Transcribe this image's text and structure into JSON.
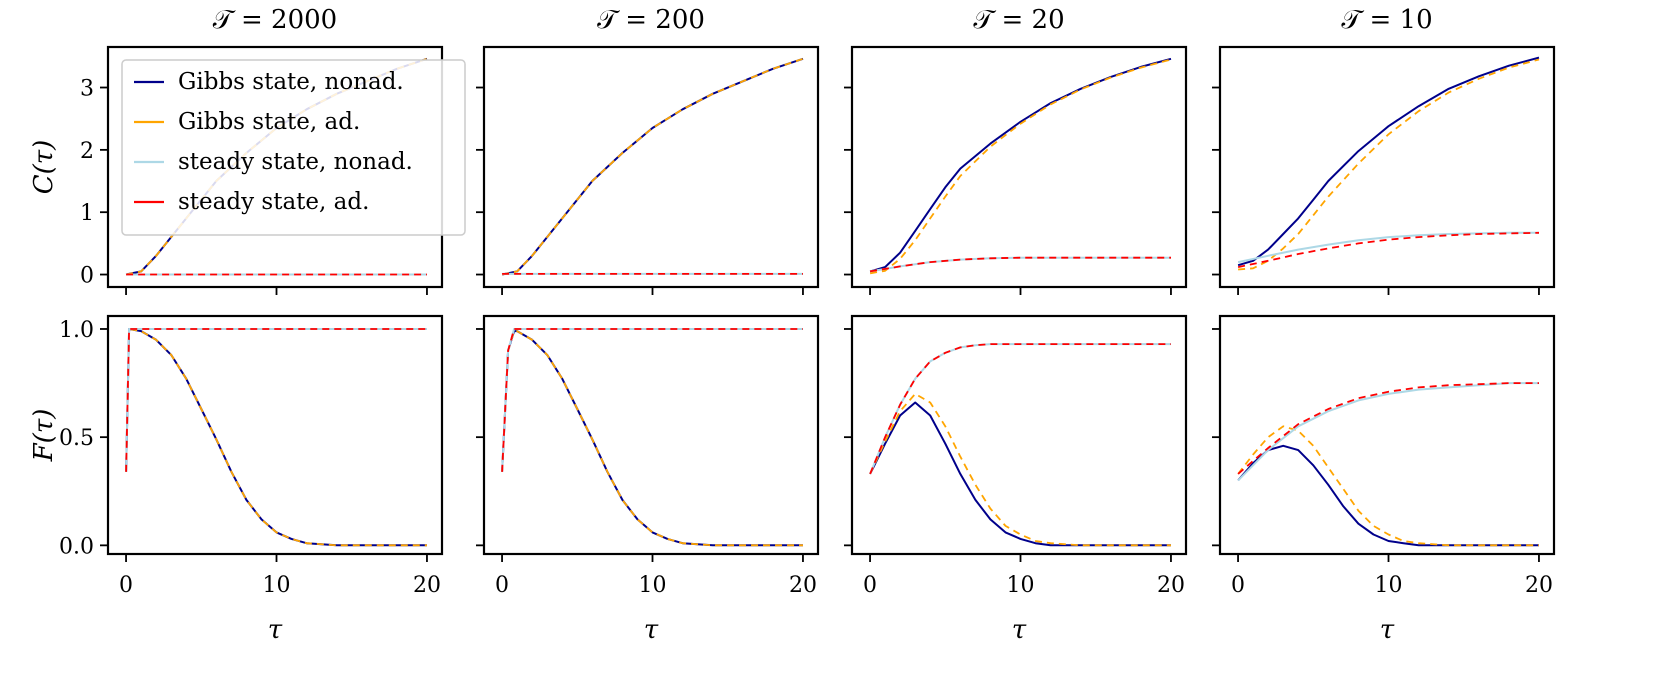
{
  "chart_data": {
    "type": "line",
    "layout": "2 rows x 4 columns",
    "row_ylabels": [
      "C(τ)",
      "F(τ)"
    ],
    "xlabel": "τ",
    "xlim": [
      -1.2,
      21
    ],
    "xticks": [
      0,
      10,
      20
    ],
    "rows": [
      {
        "ylabel": "C(τ)",
        "ylim": [
          -0.2,
          3.65
        ],
        "yticks": [
          0,
          1,
          2,
          3
        ],
        "ytick_labels": [
          "0",
          "1",
          "2",
          "3"
        ]
      },
      {
        "ylabel": "F(τ)",
        "ylim": [
          -0.04,
          1.06
        ],
        "yticks": [
          0.0,
          0.5,
          1.0
        ],
        "ytick_labels": [
          "0.0",
          "0.5",
          "1.0"
        ]
      }
    ],
    "legend": {
      "placement": "upper-left of first panel",
      "entries": [
        {
          "label": "Gibbs state, nonad.",
          "color": "#00008b"
        },
        {
          "label": "Gibbs state, ad.",
          "color": "#ffa500"
        },
        {
          "label": "steady state, nonad.",
          "color": "#add8e6"
        },
        {
          "label": "steady state, ad.",
          "color": "#ff0000"
        }
      ]
    },
    "columns": [
      {
        "title": "𝒯 = 2000",
        "C": {
          "gibbs_nonad": {
            "x": [
              0,
              1,
              2,
              4,
              6,
              8,
              10,
              12,
              14,
              16,
              18,
              20
            ],
            "y": [
              0,
              0.05,
              0.3,
              0.9,
              1.5,
              1.95,
              2.35,
              2.65,
              2.9,
              3.1,
              3.3,
              3.46
            ]
          },
          "gibbs_ad": {
            "x": [
              0,
              1,
              2,
              4,
              6,
              8,
              10,
              12,
              14,
              16,
              18,
              20
            ],
            "y": [
              0,
              0.05,
              0.3,
              0.9,
              1.5,
              1.95,
              2.35,
              2.65,
              2.9,
              3.1,
              3.3,
              3.46
            ]
          },
          "steady_nonad": {
            "x": [
              0,
              20
            ],
            "y": [
              0.0,
              0.0
            ]
          },
          "steady_ad": {
            "x": [
              0,
              20
            ],
            "y": [
              0.0,
              0.0
            ]
          }
        },
        "F": {
          "gibbs_nonad": {
            "x": [
              0,
              0.2,
              1,
              2,
              3,
              4,
              5,
              6,
              7,
              8,
              9,
              10,
              11,
              12,
              14,
              16,
              20
            ],
            "y": [
              0.34,
              1.0,
              0.99,
              0.95,
              0.88,
              0.77,
              0.63,
              0.49,
              0.34,
              0.21,
              0.12,
              0.06,
              0.03,
              0.01,
              0.0,
              0.0,
              0.0
            ]
          },
          "gibbs_ad": {
            "x": [
              0,
              0.2,
              1,
              2,
              3,
              4,
              5,
              6,
              7,
              8,
              9,
              10,
              11,
              12,
              14,
              16,
              20
            ],
            "y": [
              0.34,
              1.0,
              0.99,
              0.95,
              0.88,
              0.77,
              0.63,
              0.49,
              0.34,
              0.21,
              0.12,
              0.06,
              0.03,
              0.01,
              0.0,
              0.0,
              0.0
            ]
          },
          "steady_nonad": {
            "x": [
              0,
              0.2,
              20
            ],
            "y": [
              0.34,
              1.0,
              1.0
            ]
          },
          "steady_ad": {
            "x": [
              0,
              0.2,
              20
            ],
            "y": [
              0.34,
              1.0,
              1.0
            ]
          }
        }
      },
      {
        "title": "𝒯 = 200",
        "C": {
          "gibbs_nonad": {
            "x": [
              0,
              1,
              2,
              4,
              6,
              8,
              10,
              12,
              14,
              16,
              18,
              20
            ],
            "y": [
              0,
              0.05,
              0.3,
              0.9,
              1.5,
              1.95,
              2.35,
              2.65,
              2.9,
              3.1,
              3.3,
              3.46
            ]
          },
          "gibbs_ad": {
            "x": [
              0,
              1,
              2,
              4,
              6,
              8,
              10,
              12,
              14,
              16,
              18,
              20
            ],
            "y": [
              0,
              0.05,
              0.3,
              0.9,
              1.5,
              1.95,
              2.35,
              2.65,
              2.9,
              3.1,
              3.3,
              3.46
            ]
          },
          "steady_nonad": {
            "x": [
              0,
              20
            ],
            "y": [
              0.01,
              0.01
            ]
          },
          "steady_ad": {
            "x": [
              0,
              20
            ],
            "y": [
              0.01,
              0.01
            ]
          }
        },
        "F": {
          "gibbs_nonad": {
            "x": [
              0,
              0.4,
              0.8,
              1,
              2,
              3,
              4,
              5,
              6,
              7,
              8,
              9,
              10,
              11,
              12,
              14,
              16,
              20
            ],
            "y": [
              0.34,
              0.9,
              0.99,
              0.99,
              0.95,
              0.88,
              0.77,
              0.63,
              0.49,
              0.34,
              0.21,
              0.12,
              0.06,
              0.03,
              0.01,
              0.0,
              0.0,
              0.0
            ]
          },
          "gibbs_ad": {
            "x": [
              0,
              0.4,
              0.8,
              1,
              2,
              3,
              4,
              5,
              6,
              7,
              8,
              9,
              10,
              11,
              12,
              14,
              16,
              20
            ],
            "y": [
              0.34,
              0.9,
              0.99,
              0.99,
              0.95,
              0.88,
              0.77,
              0.63,
              0.49,
              0.34,
              0.21,
              0.12,
              0.06,
              0.03,
              0.01,
              0.0,
              0.0,
              0.0
            ]
          },
          "steady_nonad": {
            "x": [
              0,
              0.4,
              0.8,
              20
            ],
            "y": [
              0.34,
              0.9,
              1.0,
              1.0
            ]
          },
          "steady_ad": {
            "x": [
              0,
              0.4,
              0.8,
              20
            ],
            "y": [
              0.34,
              0.9,
              1.0,
              1.0
            ]
          }
        }
      },
      {
        "title": "𝒯 = 20",
        "C": {
          "gibbs_nonad": {
            "x": [
              0,
              1,
              2,
              3,
              4,
              5,
              6,
              8,
              10,
              12,
              14,
              16,
              18,
              20
            ],
            "y": [
              0.05,
              0.12,
              0.35,
              0.7,
              1.05,
              1.4,
              1.7,
              2.1,
              2.45,
              2.75,
              2.98,
              3.17,
              3.33,
              3.46
            ]
          },
          "gibbs_ad": {
            "x": [
              0,
              1,
              2,
              3,
              4,
              5,
              6,
              8,
              10,
              12,
              14,
              16,
              18,
              20
            ],
            "y": [
              0.02,
              0.06,
              0.25,
              0.55,
              0.9,
              1.25,
              1.58,
              2.05,
              2.42,
              2.73,
              2.97,
              3.16,
              3.32,
              3.45
            ]
          },
          "steady_nonad": {
            "x": [
              0,
              2,
              4,
              6,
              8,
              10,
              20
            ],
            "y": [
              0.05,
              0.13,
              0.2,
              0.24,
              0.26,
              0.27,
              0.27
            ]
          },
          "steady_ad": {
            "x": [
              0,
              2,
              4,
              6,
              8,
              10,
              20
            ],
            "y": [
              0.05,
              0.13,
              0.2,
              0.24,
              0.26,
              0.27,
              0.27
            ]
          }
        },
        "F": {
          "gibbs_nonad": {
            "x": [
              0,
              1,
              2,
              3,
              4,
              5,
              6,
              7,
              8,
              9,
              10,
              11,
              12,
              14,
              16,
              20
            ],
            "y": [
              0.33,
              0.47,
              0.6,
              0.66,
              0.6,
              0.47,
              0.33,
              0.21,
              0.12,
              0.06,
              0.03,
              0.01,
              0.0,
              0.0,
              0.0,
              0.0
            ]
          },
          "gibbs_ad": {
            "x": [
              0,
              1,
              2,
              3,
              4,
              5,
              6,
              7,
              8,
              9,
              10,
              11,
              12,
              14,
              16,
              20
            ],
            "y": [
              0.33,
              0.48,
              0.62,
              0.7,
              0.66,
              0.55,
              0.41,
              0.28,
              0.17,
              0.09,
              0.05,
              0.02,
              0.01,
              0.0,
              0.0,
              0.0
            ]
          },
          "steady_nonad": {
            "x": [
              0,
              1,
              2,
              3,
              4,
              5,
              6,
              7,
              8,
              10,
              20
            ],
            "y": [
              0.33,
              0.5,
              0.65,
              0.77,
              0.85,
              0.89,
              0.915,
              0.925,
              0.93,
              0.93,
              0.93
            ]
          },
          "steady_ad": {
            "x": [
              0,
              1,
              2,
              3,
              4,
              5,
              6,
              7,
              8,
              10,
              20
            ],
            "y": [
              0.33,
              0.5,
              0.65,
              0.77,
              0.85,
              0.89,
              0.915,
              0.925,
              0.93,
              0.93,
              0.93
            ]
          }
        }
      },
      {
        "title": "𝒯 = 10",
        "C": {
          "gibbs_nonad": {
            "x": [
              0,
              1,
              2,
              3,
              4,
              5,
              6,
              8,
              10,
              12,
              14,
              16,
              18,
              20
            ],
            "y": [
              0.15,
              0.22,
              0.4,
              0.65,
              0.9,
              1.2,
              1.5,
              1.98,
              2.38,
              2.7,
              2.98,
              3.18,
              3.35,
              3.48
            ]
          },
          "gibbs_ad": {
            "x": [
              0,
              1,
              2,
              3,
              4,
              5,
              6,
              8,
              10,
              12,
              14,
              16,
              18,
              20
            ],
            "y": [
              0.08,
              0.1,
              0.22,
              0.42,
              0.65,
              0.95,
              1.25,
              1.78,
              2.25,
              2.62,
              2.92,
              3.14,
              3.32,
              3.45
            ]
          },
          "steady_nonad": {
            "x": [
              0,
              2,
              4,
              6,
              8,
              10,
              12,
              14,
              16,
              18,
              20
            ],
            "y": [
              0.2,
              0.3,
              0.4,
              0.48,
              0.55,
              0.6,
              0.63,
              0.65,
              0.66,
              0.67,
              0.67
            ]
          },
          "steady_ad": {
            "x": [
              0,
              2,
              4,
              6,
              8,
              10,
              12,
              14,
              16,
              18,
              20
            ],
            "y": [
              0.12,
              0.22,
              0.33,
              0.42,
              0.5,
              0.56,
              0.6,
              0.63,
              0.65,
              0.66,
              0.67
            ]
          }
        },
        "F": {
          "gibbs_nonad": {
            "x": [
              0,
              1,
              2,
              3,
              4,
              5,
              6,
              7,
              8,
              9,
              10,
              11,
              12,
              14,
              16,
              20
            ],
            "y": [
              0.3,
              0.38,
              0.44,
              0.46,
              0.44,
              0.37,
              0.28,
              0.18,
              0.1,
              0.05,
              0.02,
              0.01,
              0.0,
              0.0,
              0.0,
              0.0
            ]
          },
          "gibbs_ad": {
            "x": [
              0,
              1,
              2,
              3,
              4,
              5,
              6,
              7,
              8,
              9,
              10,
              11,
              12,
              14,
              16,
              20
            ],
            "y": [
              0.33,
              0.42,
              0.5,
              0.55,
              0.53,
              0.46,
              0.36,
              0.26,
              0.16,
              0.09,
              0.05,
              0.02,
              0.01,
              0.0,
              0.0,
              0.0
            ]
          },
          "steady_nonad": {
            "x": [
              0,
              2,
              4,
              6,
              8,
              10,
              12,
              14,
              16,
              18,
              20
            ],
            "y": [
              0.3,
              0.44,
              0.55,
              0.62,
              0.67,
              0.7,
              0.72,
              0.73,
              0.74,
              0.75,
              0.75
            ]
          },
          "steady_ad": {
            "x": [
              0,
              2,
              4,
              6,
              8,
              10,
              12,
              14,
              16,
              18,
              20
            ],
            "y": [
              0.33,
              0.45,
              0.56,
              0.63,
              0.68,
              0.71,
              0.73,
              0.74,
              0.745,
              0.75,
              0.75
            ]
          }
        }
      }
    ]
  }
}
